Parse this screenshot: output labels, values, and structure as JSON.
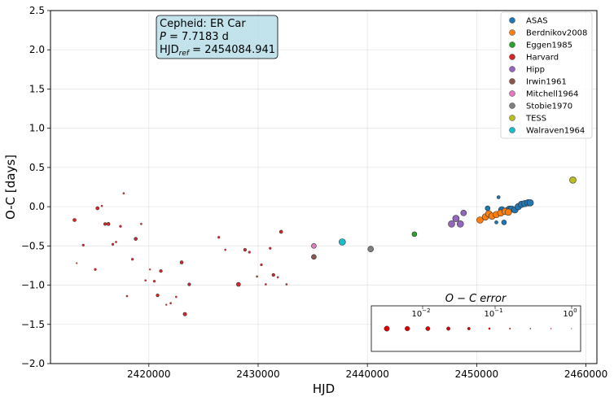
{
  "chart_data": {
    "type": "scatter",
    "xlabel": "HJD",
    "ylabel": "O-C [days]",
    "xlim": [
      2411000,
      2461000
    ],
    "ylim": [
      -2.0,
      2.5
    ],
    "x_ticks": [
      2420000,
      2430000,
      2440000,
      2450000,
      2460000
    ],
    "y_ticks": [
      -2.0,
      -1.5,
      -1.0,
      -0.5,
      0.0,
      0.5,
      1.0,
      1.5,
      2.0,
      2.5
    ],
    "x_tick_labels": [
      "2420000",
      "2430000",
      "2440000",
      "2450000",
      "2460000"
    ],
    "y_tick_labels": [
      "−2.0",
      "−1.5",
      "−1.0",
      "−0.5",
      "0.0",
      "0.5",
      "1.0",
      "1.5",
      "2.0",
      "2.5"
    ],
    "grid": true,
    "legend_position": "top-right",
    "annotation": {
      "line1": "Cepheid: ER Car",
      "line2_prefix": "P",
      "line2_value": " = 7.7183 d",
      "line3_prefix": "HJD",
      "line3_sub": "ref",
      "line3_value": " = 2454084.941"
    },
    "error_legend": {
      "title": "O − C error",
      "tick_labels": [
        "10",
        "10",
        "10"
      ],
      "tick_exponents": [
        "−2",
        "−1",
        "0"
      ]
    },
    "series": [
      {
        "name": "ASAS",
        "color": "#1f77b4",
        "points": [
          [
            2451000,
            -0.02
          ],
          [
            2452000,
            0.12
          ],
          [
            2452300,
            -0.04
          ],
          [
            2452500,
            -0.2
          ],
          [
            2452800,
            -0.05
          ],
          [
            2453000,
            -0.03
          ],
          [
            2453200,
            -0.03
          ],
          [
            2453500,
            -0.04
          ],
          [
            2453800,
            0.0
          ],
          [
            2454100,
            0.03
          ],
          [
            2454400,
            0.04
          ],
          [
            2454700,
            0.05
          ],
          [
            2454900,
            0.05
          ],
          [
            2451800,
            -0.2
          ]
        ],
        "sizes": [
          3,
          2,
          4,
          3,
          4,
          4,
          4,
          4,
          4,
          4,
          4,
          4,
          4,
          2
        ]
      },
      {
        "name": "Berdnikov2008",
        "color": "#ff7f0e",
        "points": [
          [
            2450300,
            -0.17
          ],
          [
            2450800,
            -0.13
          ],
          [
            2451100,
            -0.09
          ],
          [
            2451400,
            -0.12
          ],
          [
            2451800,
            -0.1
          ],
          [
            2452200,
            -0.08
          ],
          [
            2452600,
            -0.06
          ],
          [
            2452900,
            -0.07
          ]
        ],
        "sizes": [
          4,
          4,
          4,
          4,
          4,
          4,
          4,
          4
        ]
      },
      {
        "name": "Eggen1985",
        "color": "#2ca02c",
        "points": [
          [
            2444300,
            -0.35
          ]
        ],
        "sizes": [
          3
        ]
      },
      {
        "name": "Harvard",
        "color": "#d62728",
        "points": [
          [
            2413200,
            -0.17
          ],
          [
            2414000,
            -0.49
          ],
          [
            2415100,
            -0.8
          ],
          [
            2415300,
            -0.02
          ],
          [
            2415700,
            0.01
          ],
          [
            2416000,
            -0.22
          ],
          [
            2416300,
            -0.22
          ],
          [
            2416700,
            -0.48
          ],
          [
            2417000,
            -0.45
          ],
          [
            2417400,
            -0.25
          ],
          [
            2417700,
            0.17
          ],
          [
            2418000,
            -1.14
          ],
          [
            2418500,
            -0.67
          ],
          [
            2418800,
            -0.41
          ],
          [
            2419300,
            -0.22
          ],
          [
            2419700,
            -0.94
          ],
          [
            2420100,
            -0.8
          ],
          [
            2420500,
            -0.95
          ],
          [
            2420800,
            -1.13
          ],
          [
            2421100,
            -0.82
          ],
          [
            2421600,
            -1.25
          ],
          [
            2422000,
            -1.23
          ],
          [
            2422500,
            -1.15
          ],
          [
            2423000,
            -0.71
          ],
          [
            2423300,
            -1.37
          ],
          [
            2423700,
            -0.99
          ],
          [
            2426400,
            -0.39
          ],
          [
            2427000,
            -0.55
          ],
          [
            2428200,
            -0.99
          ],
          [
            2428800,
            -0.55
          ],
          [
            2429200,
            -0.58
          ],
          [
            2429900,
            -0.89
          ],
          [
            2430300,
            -0.74
          ],
          [
            2430700,
            -0.99
          ],
          [
            2431100,
            -0.53
          ],
          [
            2431400,
            -0.87
          ],
          [
            2431800,
            -0.9
          ],
          [
            2432100,
            -0.32
          ],
          [
            2432600,
            -0.99
          ],
          [
            2413400,
            -0.72
          ]
        ],
        "sizes": [
          2,
          1.5,
          1.5,
          2,
          1.2,
          1.8,
          2,
          1.5,
          1.2,
          1.5,
          1.2,
          1.2,
          1.5,
          2,
          1.2,
          1.2,
          1,
          1.5,
          1.8,
          1.8,
          1,
          1.2,
          1.2,
          2,
          2.2,
          1.8,
          1.5,
          1.2,
          2.5,
          1.8,
          1.5,
          1.2,
          1.5,
          1.2,
          1.5,
          1.8,
          1.2,
          2,
          1.2,
          0.9
        ]
      },
      {
        "name": "Hipp",
        "color": "#9467bd",
        "points": [
          [
            2447700,
            -0.22
          ],
          [
            2448100,
            -0.15
          ],
          [
            2448500,
            -0.22
          ],
          [
            2448800,
            -0.08
          ]
        ],
        "sizes": [
          4,
          4,
          4,
          3.5
        ]
      },
      {
        "name": "Irwin1961",
        "color": "#8c564b",
        "points": [
          [
            2435100,
            -0.64
          ]
        ],
        "sizes": [
          3
        ]
      },
      {
        "name": "Mitchell1964",
        "color": "#e377c2",
        "points": [
          [
            2435100,
            -0.5
          ]
        ],
        "sizes": [
          3
        ]
      },
      {
        "name": "Stobie1970",
        "color": "#7f7f7f",
        "points": [
          [
            2440300,
            -0.54
          ]
        ],
        "sizes": [
          3.5
        ]
      },
      {
        "name": "TESS",
        "color": "#bcbd22",
        "points": [
          [
            2458800,
            0.34
          ]
        ],
        "sizes": [
          4
        ]
      },
      {
        "name": "Walraven1964",
        "color": "#17becf",
        "points": [
          [
            2437700,
            -0.45
          ]
        ],
        "sizes": [
          4
        ]
      }
    ]
  }
}
